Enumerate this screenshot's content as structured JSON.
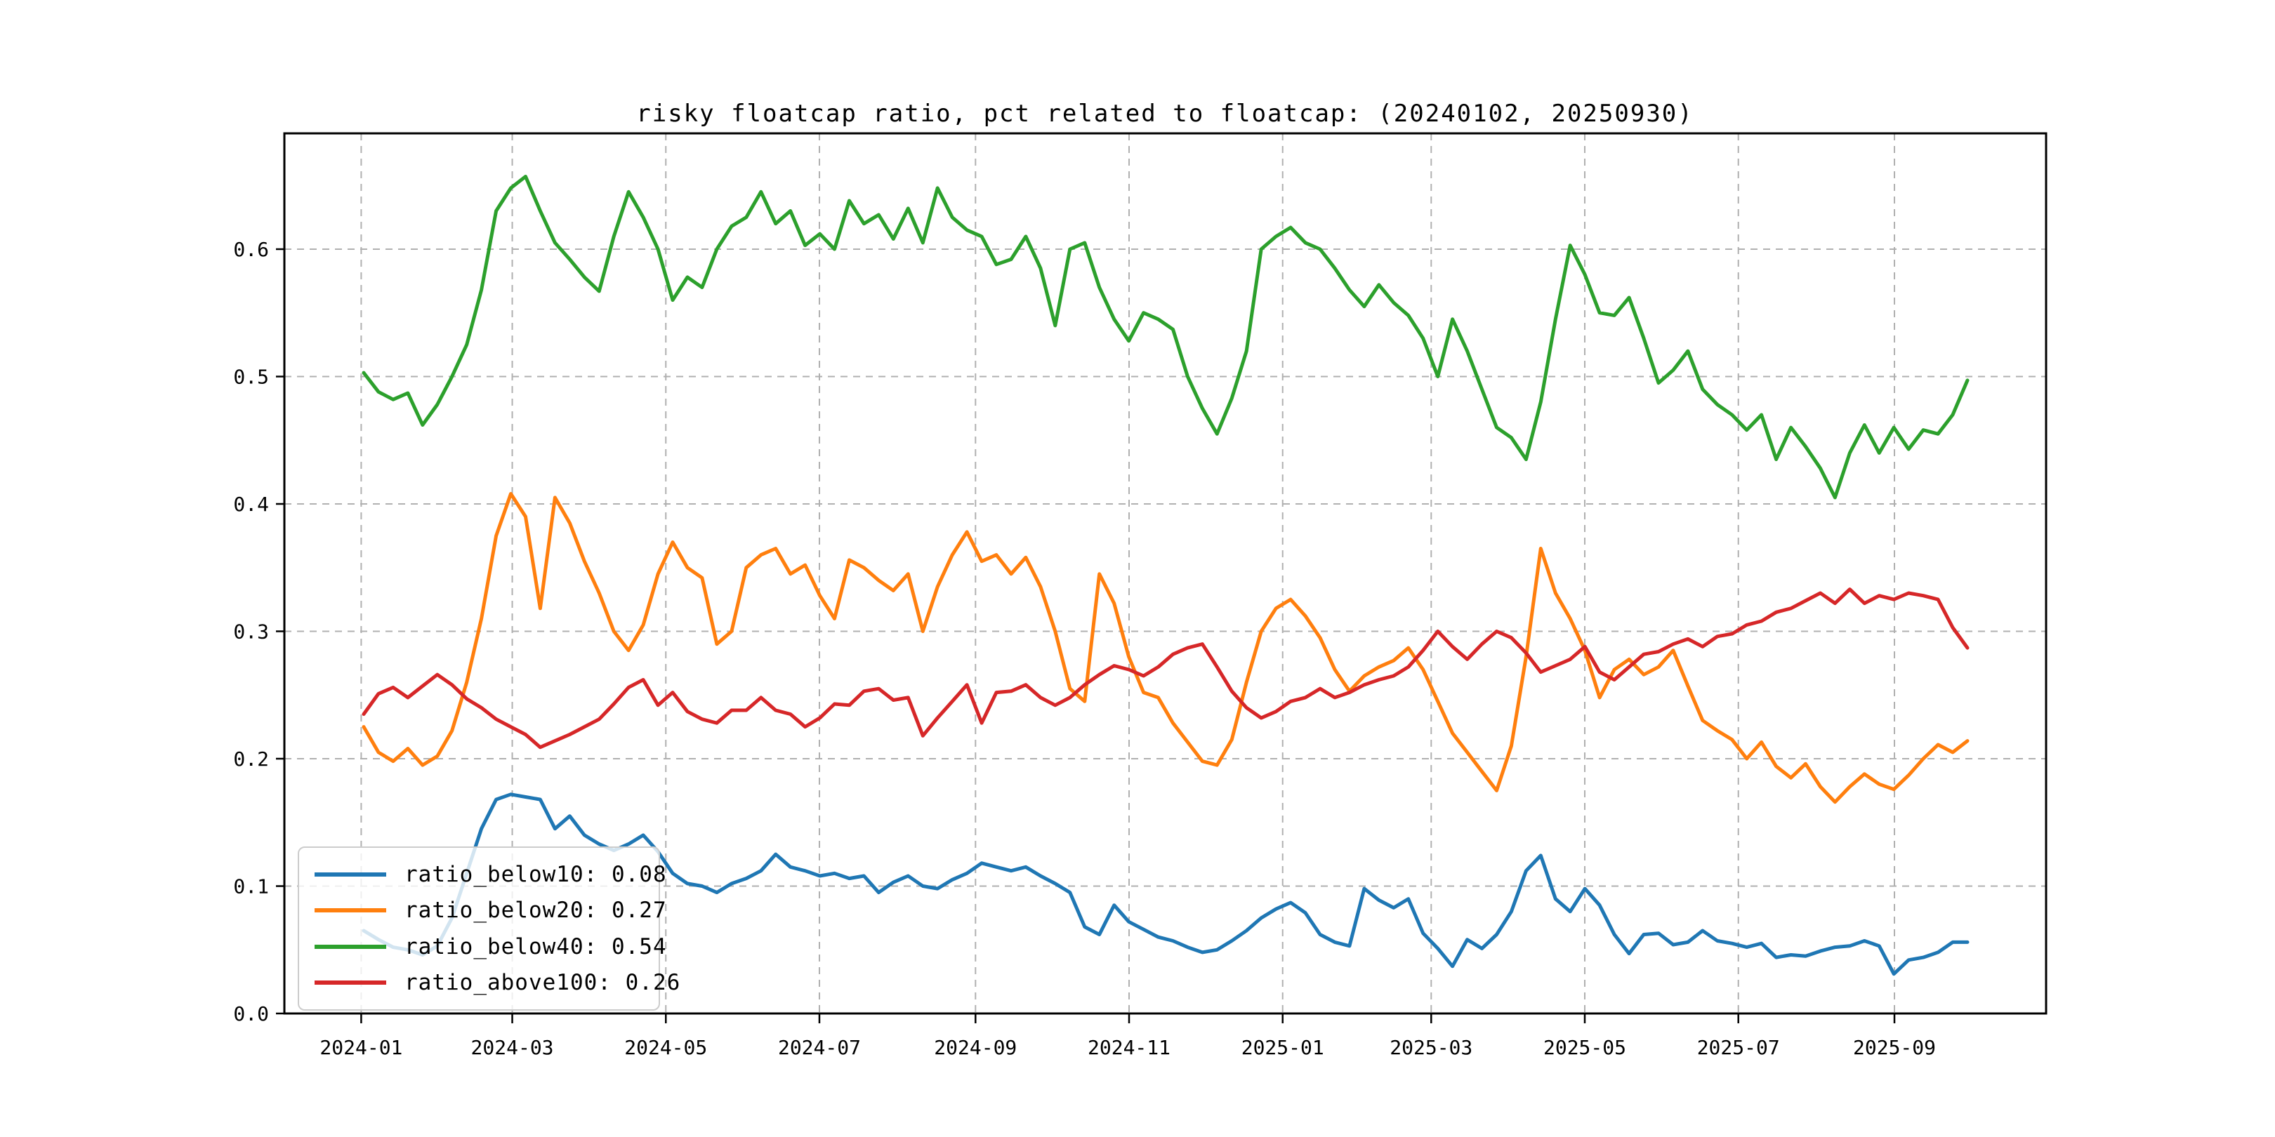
{
  "chart_data": {
    "type": "line",
    "title": "risky floatcap ratio, pct related to floatcap: (20240102, 20250930)",
    "xlabel": "",
    "ylabel": "",
    "grid": true,
    "legend_position": "lower left",
    "x_axis": {
      "tick_labels": [
        "2024-01",
        "2024-03",
        "2024-05",
        "2024-07",
        "2024-09",
        "2024-11",
        "2025-01",
        "2025-03",
        "2025-05",
        "2025-07",
        "2025-09"
      ],
      "tick_day_offsets": [
        -1,
        59,
        120,
        181,
        243,
        304,
        365,
        424,
        485,
        546,
        608
      ],
      "span_days": 637,
      "start_date": "20240102",
      "end_date": "20250930"
    },
    "y_axis": {
      "ticks": [
        0.0,
        0.1,
        0.2,
        0.3,
        0.4,
        0.5,
        0.6
      ],
      "tick_labels": [
        "0.0",
        "0.1",
        "0.2",
        "0.3",
        "0.4",
        "0.5",
        "0.6"
      ],
      "range": [
        0.0,
        0.691
      ]
    },
    "grid_color": "#b0b0b0",
    "spine_color": "#000000",
    "series": [
      {
        "name": "ratio_below10",
        "legend_label": "ratio_below10: 0.08",
        "color": "#1f77b4",
        "values": [
          0.065,
          0.058,
          0.052,
          0.05,
          0.046,
          0.053,
          0.075,
          0.11,
          0.145,
          0.168,
          0.172,
          0.17,
          0.168,
          0.145,
          0.155,
          0.14,
          0.133,
          0.128,
          0.133,
          0.14,
          0.127,
          0.11,
          0.102,
          0.1,
          0.095,
          0.102,
          0.106,
          0.112,
          0.125,
          0.115,
          0.112,
          0.108,
          0.11,
          0.106,
          0.108,
          0.095,
          0.103,
          0.108,
          0.1,
          0.098,
          0.105,
          0.11,
          0.118,
          0.115,
          0.112,
          0.115,
          0.108,
          0.102,
          0.095,
          0.068,
          0.062,
          0.085,
          0.072,
          0.066,
          0.06,
          0.057,
          0.052,
          0.048,
          0.05,
          0.057,
          0.065,
          0.075,
          0.082,
          0.087,
          0.079,
          0.062,
          0.056,
          0.053,
          0.098,
          0.089,
          0.083,
          0.09,
          0.063,
          0.051,
          0.037,
          0.058,
          0.051,
          0.062,
          0.08,
          0.112,
          0.124,
          0.09,
          0.08,
          0.098,
          0.085,
          0.062,
          0.047,
          0.062,
          0.063,
          0.054,
          0.056,
          0.065,
          0.057,
          0.055,
          0.052,
          0.055,
          0.044,
          0.046,
          0.045,
          0.049,
          0.052,
          0.053,
          0.057,
          0.053,
          0.031,
          0.042,
          0.044,
          0.048,
          0.056,
          0.056
        ]
      },
      {
        "name": "ratio_below20",
        "legend_label": "ratio_below20: 0.27",
        "color": "#ff7f0e",
        "values": [
          0.225,
          0.205,
          0.198,
          0.208,
          0.195,
          0.202,
          0.222,
          0.26,
          0.31,
          0.375,
          0.408,
          0.39,
          0.318,
          0.405,
          0.385,
          0.355,
          0.33,
          0.3,
          0.285,
          0.305,
          0.345,
          0.37,
          0.35,
          0.342,
          0.29,
          0.3,
          0.35,
          0.36,
          0.365,
          0.345,
          0.352,
          0.328,
          0.31,
          0.356,
          0.35,
          0.34,
          0.332,
          0.345,
          0.3,
          0.335,
          0.36,
          0.378,
          0.355,
          0.36,
          0.345,
          0.358,
          0.335,
          0.3,
          0.255,
          0.245,
          0.345,
          0.322,
          0.28,
          0.252,
          0.248,
          0.228,
          0.213,
          0.198,
          0.195,
          0.215,
          0.26,
          0.3,
          0.318,
          0.325,
          0.312,
          0.295,
          0.27,
          0.253,
          0.265,
          0.272,
          0.277,
          0.287,
          0.27,
          0.245,
          0.22,
          0.205,
          0.19,
          0.175,
          0.21,
          0.28,
          0.365,
          0.33,
          0.31,
          0.285,
          0.248,
          0.27,
          0.278,
          0.266,
          0.272,
          0.285,
          0.257,
          0.23,
          0.222,
          0.215,
          0.2,
          0.213,
          0.194,
          0.185,
          0.196,
          0.178,
          0.166,
          0.178,
          0.188,
          0.18,
          0.176,
          0.187,
          0.2,
          0.211,
          0.205,
          0.214
        ]
      },
      {
        "name": "ratio_below40",
        "legend_label": "ratio_below40: 0.54",
        "color": "#2ca02c",
        "values": [
          0.503,
          0.488,
          0.482,
          0.487,
          0.462,
          0.478,
          0.5,
          0.525,
          0.568,
          0.63,
          0.648,
          0.657,
          0.63,
          0.605,
          0.592,
          0.578,
          0.567,
          0.61,
          0.645,
          0.625,
          0.6,
          0.56,
          0.578,
          0.57,
          0.6,
          0.618,
          0.625,
          0.645,
          0.62,
          0.63,
          0.603,
          0.612,
          0.6,
          0.638,
          0.62,
          0.627,
          0.608,
          0.632,
          0.605,
          0.648,
          0.625,
          0.615,
          0.61,
          0.588,
          0.592,
          0.61,
          0.585,
          0.54,
          0.6,
          0.605,
          0.57,
          0.545,
          0.528,
          0.55,
          0.545,
          0.537,
          0.5,
          0.475,
          0.455,
          0.483,
          0.52,
          0.6,
          0.61,
          0.617,
          0.605,
          0.6,
          0.585,
          0.568,
          0.555,
          0.572,
          0.558,
          0.548,
          0.53,
          0.5,
          0.545,
          0.52,
          0.49,
          0.46,
          0.452,
          0.435,
          0.48,
          0.545,
          0.603,
          0.58,
          0.55,
          0.548,
          0.562,
          0.53,
          0.495,
          0.505,
          0.52,
          0.49,
          0.478,
          0.47,
          0.458,
          0.47,
          0.435,
          0.46,
          0.445,
          0.428,
          0.405,
          0.44,
          0.462,
          0.44,
          0.46,
          0.443,
          0.458,
          0.455,
          0.47,
          0.497
        ]
      },
      {
        "name": "ratio_above100",
        "legend_label": "ratio_above100: 0.26",
        "color": "#d62728",
        "values": [
          0.235,
          0.251,
          0.256,
          0.248,
          0.257,
          0.266,
          0.258,
          0.247,
          0.24,
          0.231,
          0.225,
          0.219,
          0.209,
          0.214,
          0.219,
          0.225,
          0.231,
          0.243,
          0.256,
          0.262,
          0.242,
          0.252,
          0.237,
          0.231,
          0.228,
          0.238,
          0.238,
          0.248,
          0.238,
          0.235,
          0.225,
          0.232,
          0.243,
          0.242,
          0.253,
          0.255,
          0.246,
          0.248,
          0.218,
          0.232,
          0.245,
          0.258,
          0.228,
          0.252,
          0.253,
          0.258,
          0.248,
          0.242,
          0.248,
          0.258,
          0.266,
          0.273,
          0.27,
          0.265,
          0.272,
          0.282,
          0.287,
          0.29,
          0.272,
          0.253,
          0.24,
          0.232,
          0.237,
          0.245,
          0.248,
          0.255,
          0.248,
          0.252,
          0.258,
          0.262,
          0.265,
          0.272,
          0.285,
          0.3,
          0.288,
          0.278,
          0.29,
          0.3,
          0.295,
          0.283,
          0.268,
          0.273,
          0.278,
          0.288,
          0.268,
          0.262,
          0.272,
          0.282,
          0.284,
          0.29,
          0.294,
          0.288,
          0.296,
          0.298,
          0.305,
          0.308,
          0.315,
          0.318,
          0.324,
          0.33,
          0.322,
          0.333,
          0.322,
          0.328,
          0.325,
          0.33,
          0.328,
          0.325,
          0.303,
          0.287
        ]
      }
    ]
  }
}
